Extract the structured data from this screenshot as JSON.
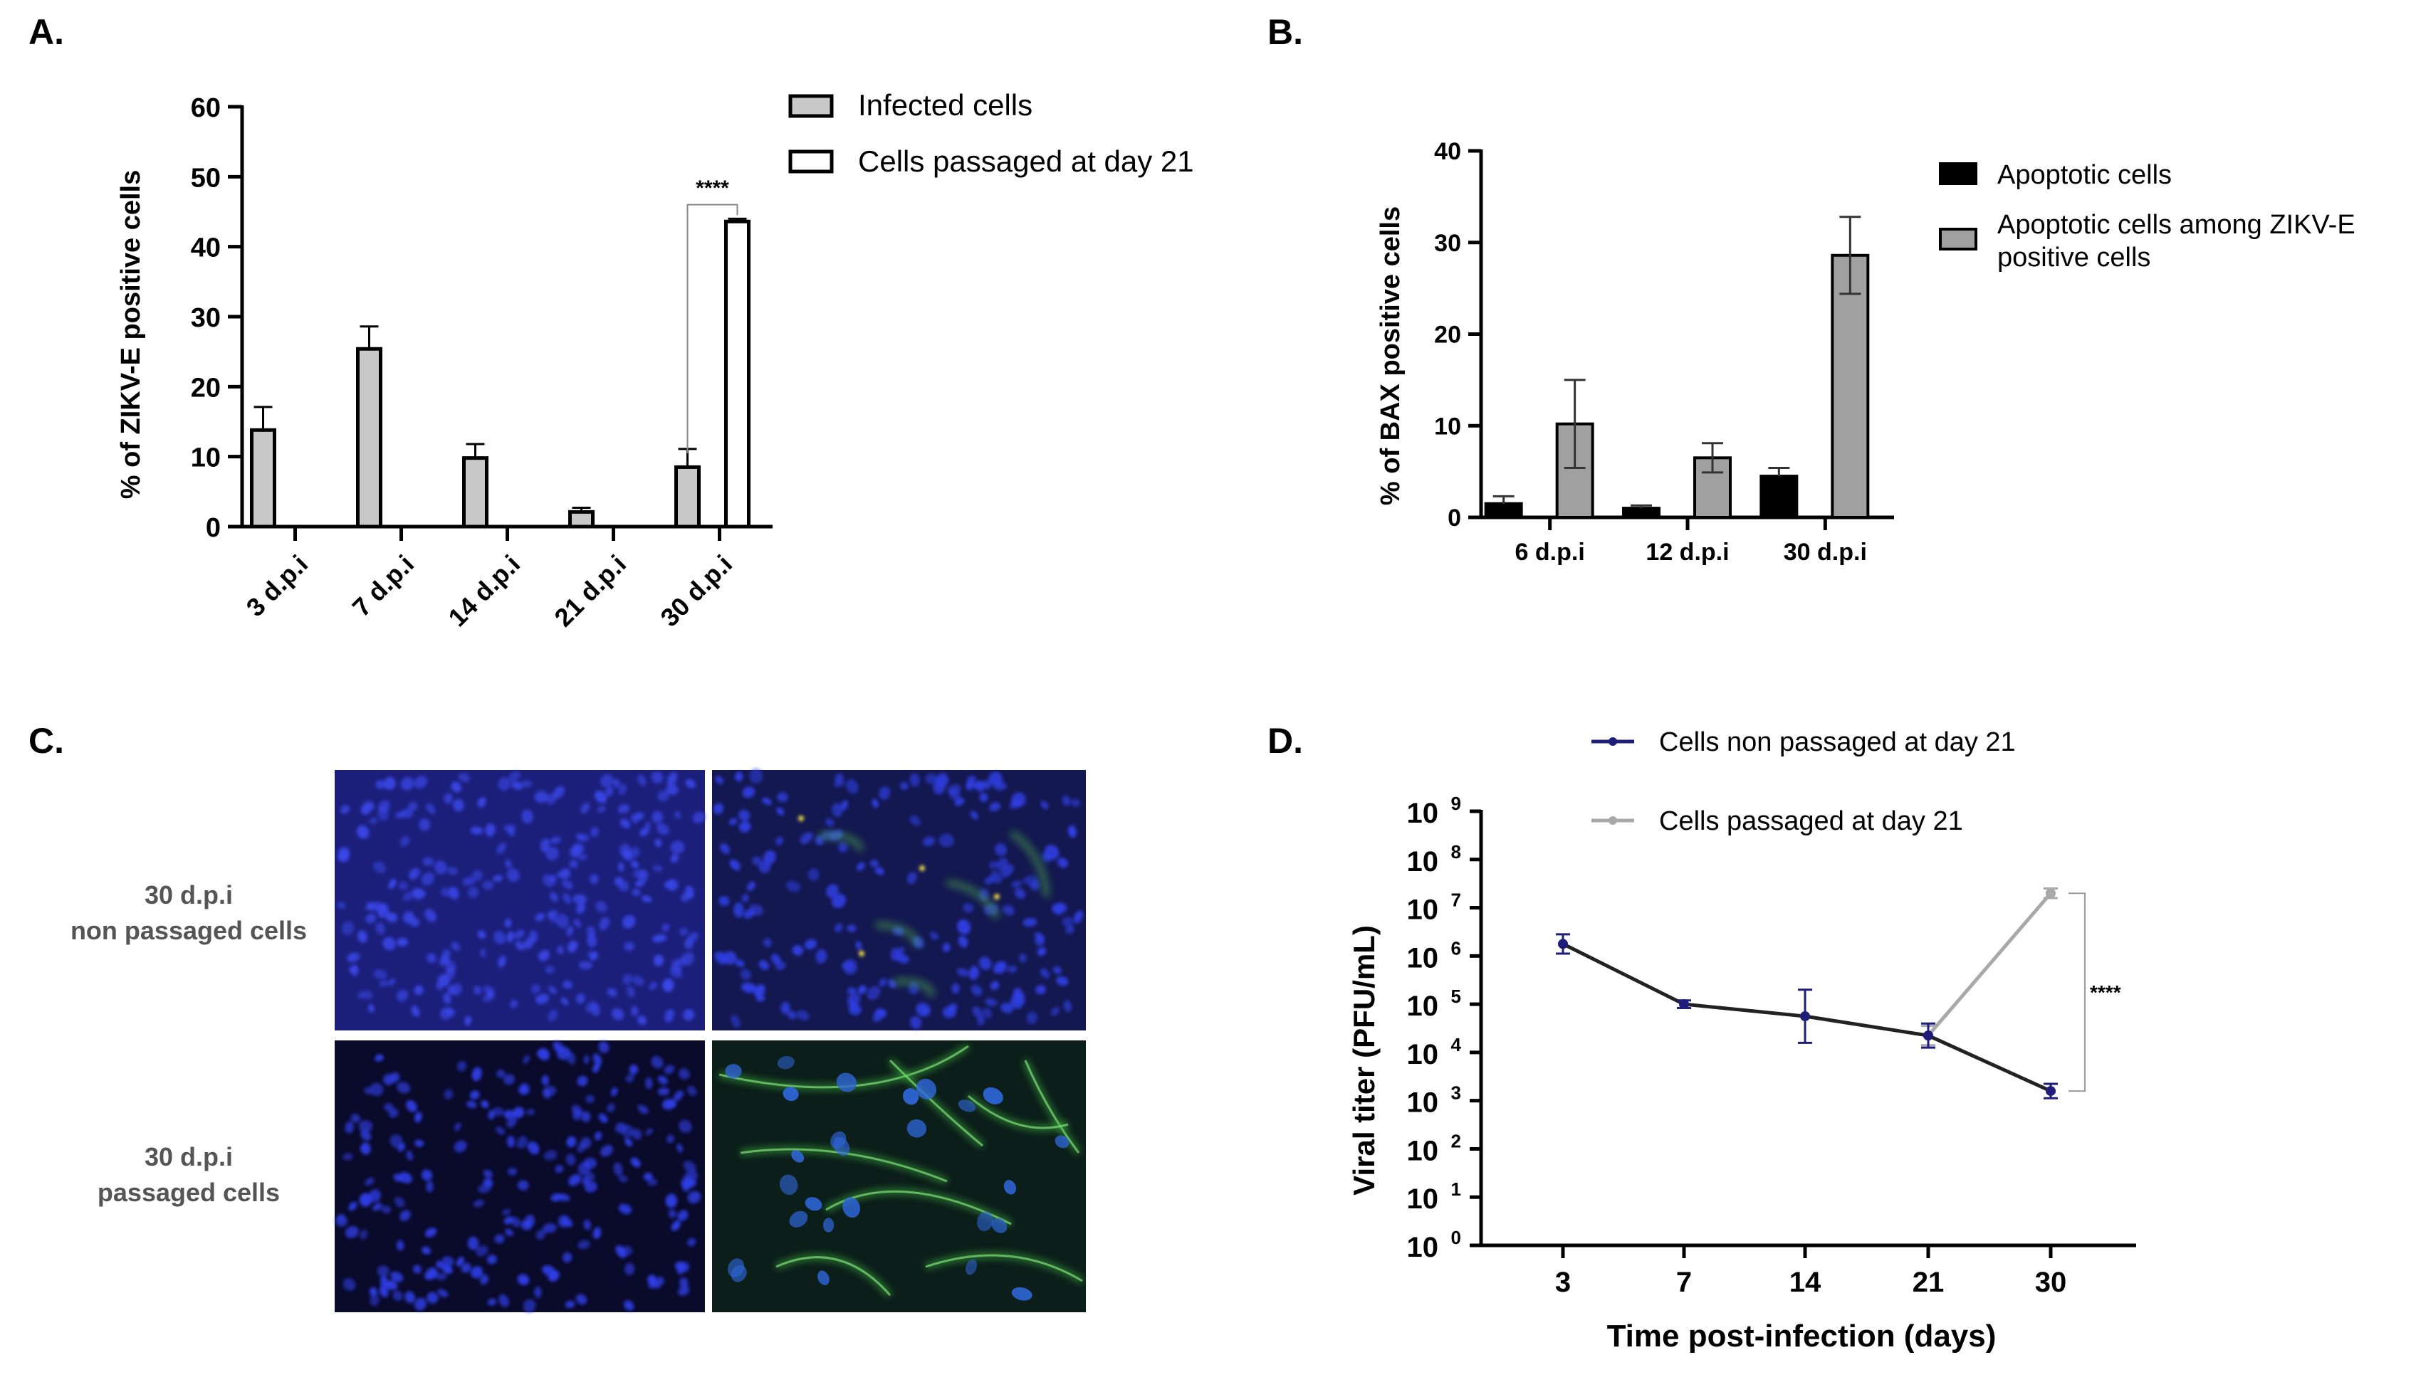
{
  "panel_labels": {
    "a": "A.",
    "b": "B.",
    "c": "C.",
    "d": "D."
  },
  "colors": {
    "grey_bar": "#c8c8c8",
    "grey_b": "#a0a0a0",
    "black": "#000000",
    "navy_line": "#1e1e7a",
    "light_grey_line": "#a8a8a8",
    "nuclei_blue": "#1f2fd0",
    "zikv_green": "#3fb03c"
  },
  "chart_data": [
    {
      "id": "A",
      "type": "bar",
      "ylabel": "% of ZIKV-E positive cells",
      "xlabel": "",
      "ylim": [
        0,
        60
      ],
      "yticks": [
        "0",
        "10",
        "20",
        "30",
        "40",
        "50",
        "60"
      ],
      "categories": [
        "3 d.p.i",
        "7 d.p.i",
        "14 d.p.i",
        "21 d.p.i",
        "30 d.p.i"
      ],
      "legend": "top-right",
      "series": [
        {
          "name": "Infected cells",
          "values": [
            13.8,
            25.4,
            9.8,
            2.1,
            8.5
          ],
          "errors": [
            3.3,
            3.2,
            2.0,
            0.6,
            2.6
          ]
        },
        {
          "name": "Cells passaged at day 21",
          "values": [
            null,
            null,
            null,
            null,
            43.6
          ],
          "errors": [
            null,
            null,
            null,
            null,
            0.4
          ]
        }
      ],
      "annotation": "****"
    },
    {
      "id": "B",
      "type": "bar",
      "ylabel": "% of BAX positive cells",
      "xlabel": "",
      "ylim": [
        0,
        40
      ],
      "yticks": [
        "0",
        "10",
        "20",
        "30",
        "40"
      ],
      "categories": [
        "6 d.p.i",
        "12 d.p.i",
        "30 d.p.i"
      ],
      "legend": "top-right",
      "series": [
        {
          "name": "Apoptotic cells",
          "values": [
            1.5,
            1.0,
            4.5
          ],
          "errors": [
            0.8,
            0.3,
            0.9
          ]
        },
        {
          "name_lines": [
            "Apoptotic cells among ZIKV-E",
            "positive cells"
          ],
          "values": [
            10.2,
            6.5,
            28.6
          ],
          "errors": [
            4.8,
            1.6,
            4.2
          ]
        }
      ]
    },
    {
      "id": "D",
      "type": "line",
      "ylabel": "Viral titer (PFU/mL)",
      "xlabel": "Time post-infection (days)",
      "log_scale": true,
      "ylim_exp": [
        0,
        9
      ],
      "ytick_exponents": [
        "0",
        "1",
        "2",
        "3",
        "4",
        "5",
        "6",
        "7",
        "8",
        "9"
      ],
      "ytick_base": "10",
      "categories": [
        "3",
        "7",
        "14",
        "21",
        "30"
      ],
      "legend": "top",
      "series": [
        {
          "name": "Cells non passaged at day 21",
          "x": [
            "3",
            "7",
            "14",
            "21",
            "30"
          ],
          "log10_values": [
            6.25,
            5.0,
            4.75,
            4.35,
            3.2
          ],
          "log10_err": [
            0.2,
            0.08,
            0.55,
            0.25,
            0.15
          ]
        },
        {
          "name": "Cells passaged at day 21",
          "x": [
            "21",
            "30"
          ],
          "log10_values": [
            4.35,
            7.3
          ],
          "log10_err": [
            0.2,
            0.1
          ]
        }
      ],
      "annotation": "****"
    }
  ],
  "panel_c": {
    "row_labels": [
      {
        "line1": "30 d.p.i",
        "line2": "non passaged cells"
      },
      {
        "line1": "30 d.p.i",
        "line2": "passaged cells"
      }
    ]
  }
}
